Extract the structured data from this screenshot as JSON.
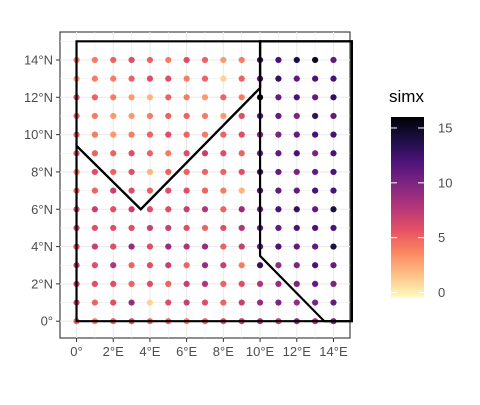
{
  "chart_data": {
    "type": "scatter",
    "title": "",
    "xlabel": "",
    "ylabel": "",
    "xlim": [
      -0.9,
      14.9
    ],
    "ylim": [
      -0.9,
      15.5
    ],
    "x_ticks": [
      0,
      2,
      4,
      6,
      8,
      10,
      12,
      14
    ],
    "x_tick_labels": [
      "0°",
      "2°E",
      "4°E",
      "6°E",
      "8°E",
      "10°E",
      "12°E",
      "14°E"
    ],
    "y_ticks": [
      0,
      2,
      4,
      6,
      8,
      10,
      12,
      14
    ],
    "y_tick_labels": [
      "0°",
      "2°N",
      "4°N",
      "6°N",
      "8°N",
      "10°N",
      "12°N",
      "14°N"
    ],
    "grid": true,
    "panel_background": "#ffffff",
    "grid_color": "#ebebeb",
    "color_scale": {
      "name": "simx",
      "palette": "magma (reversed)",
      "min": -0.5,
      "max": 16,
      "breaks": [
        0,
        5,
        10,
        15
      ],
      "break_labels": [
        "0",
        "5",
        "10",
        "15"
      ],
      "stops": [
        "#fcfdbf",
        "#fec287",
        "#fb8761",
        "#e65164",
        "#b5367a",
        "#822681",
        "#4f127b",
        "#1c1044",
        "#000004"
      ]
    },
    "legend_position": "right",
    "points": {
      "x": [
        0,
        1,
        2,
        3,
        4,
        5,
        6,
        7,
        8,
        9,
        10,
        11,
        12,
        13,
        14
      ],
      "y": [
        0,
        1,
        2,
        3,
        4,
        5,
        6,
        7,
        8,
        9,
        10,
        11,
        12,
        13,
        14
      ],
      "note_rows": "values[i][j] is simx at y = y[i], x = x[j]",
      "values": [
        [
          5,
          4,
          5,
          6,
          5,
          5,
          4,
          5,
          6,
          7,
          8,
          7,
          9,
          8,
          10
        ],
        [
          7,
          5,
          6,
          9,
          1,
          6,
          7,
          6,
          5,
          7,
          9,
          10,
          9,
          10,
          11
        ],
        [
          7,
          6,
          6,
          5,
          6,
          5,
          7,
          8,
          5,
          6,
          8,
          9,
          10,
          11,
          10
        ],
        [
          7,
          6,
          8,
          5,
          6,
          7,
          5,
          9,
          7,
          4,
          13,
          9,
          10,
          12,
          11
        ],
        [
          6,
          7,
          6,
          9,
          6,
          9,
          8,
          9,
          5,
          7,
          11,
          12,
          11,
          11,
          14
        ],
        [
          7,
          6,
          6,
          6,
          7,
          7,
          6,
          5,
          6,
          8,
          11,
          11,
          12,
          12,
          12
        ],
        [
          7,
          7,
          6,
          7,
          6,
          6,
          7,
          8,
          5,
          9,
          11,
          12,
          13,
          11,
          14
        ],
        [
          5,
          5,
          7,
          6,
          5,
          6,
          6,
          5,
          4,
          2,
          12,
          11,
          11,
          12,
          12
        ],
        [
          4,
          6,
          5,
          6,
          2,
          5,
          5,
          5,
          5,
          6,
          13,
          11,
          10,
          11,
          12
        ],
        [
          6,
          5,
          5,
          6,
          5,
          4,
          6,
          7,
          6,
          5,
          11,
          11,
          12,
          10,
          12
        ],
        [
          5,
          4,
          3,
          4,
          5,
          6,
          5,
          4,
          5,
          6,
          10,
          10,
          11,
          12,
          12
        ],
        [
          5,
          4,
          3,
          3,
          4,
          5,
          5,
          4,
          3,
          6,
          12,
          11,
          10,
          13,
          11
        ],
        [
          6,
          5,
          4,
          3,
          2,
          5,
          4,
          3,
          5,
          4,
          16,
          11,
          12,
          11,
          13
        ],
        [
          3,
          4,
          4,
          5,
          6,
          6,
          4,
          5,
          1,
          5,
          12,
          13,
          11,
          12,
          12
        ],
        [
          4,
          4,
          5,
          6,
          5,
          4,
          6,
          5,
          3,
          4,
          13,
          12,
          14,
          15,
          11
        ]
      ]
    },
    "polygons": [
      {
        "x": [
          0,
          10,
          10,
          3.5,
          0,
          0
        ],
        "y": [
          15,
          15,
          12.5,
          6,
          9.4,
          15
        ]
      },
      {
        "x": [
          10,
          15,
          15,
          0,
          0,
          3.5,
          10,
          10
        ],
        "y": [
          15,
          15,
          0,
          0,
          9.4,
          6,
          12.5,
          15
        ]
      },
      {
        "x": [
          10,
          15,
          15,
          13.5,
          10,
          10
        ],
        "y": [
          15,
          15,
          0,
          0,
          3.5,
          15
        ]
      }
    ]
  }
}
